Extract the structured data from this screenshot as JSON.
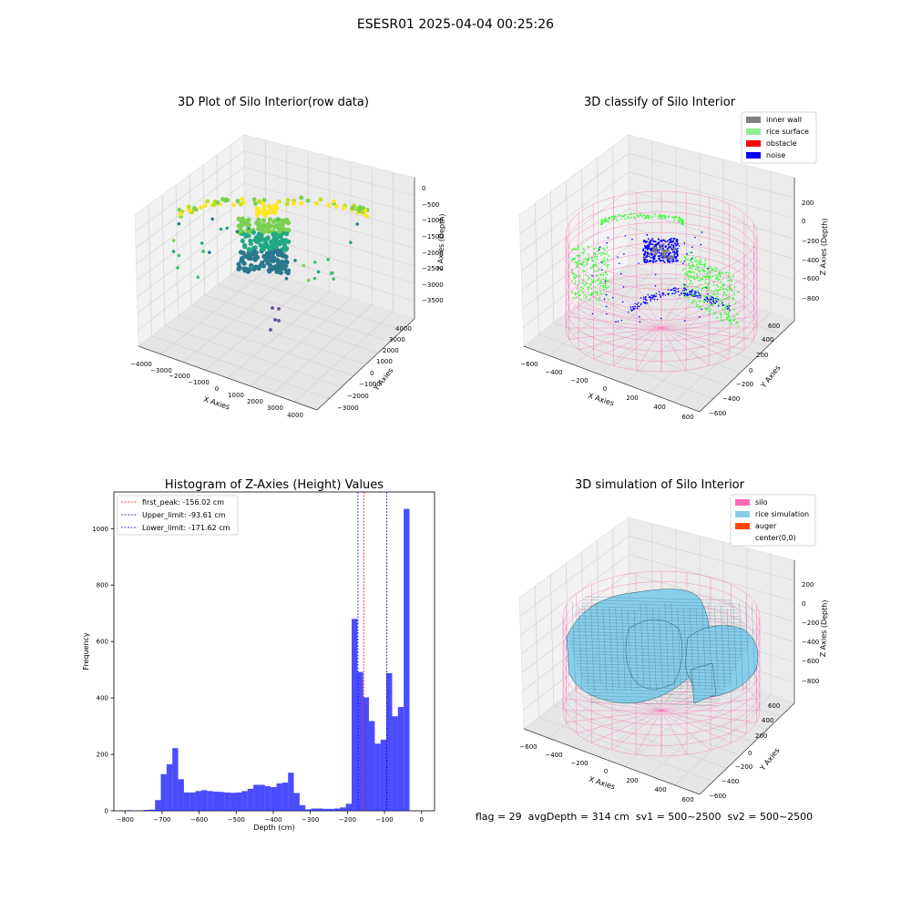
{
  "suptitle": "ESESR01 2025-04-04 00:25:26",
  "footer": "flag = 29  avgDepth = 314 cm  sv1 = 500~2500  sv2 = 500~2500",
  "panels": {
    "raw": {
      "title": "3D Plot of Silo Interior(row data)",
      "xlabel": "X Axies",
      "ylabel": "Y Axies",
      "zlabel": "Z Axies (Depth)",
      "xticks": [
        "−4000",
        "−3000",
        "−2000",
        "−1000",
        "0",
        "1000",
        "2000",
        "3000",
        "4000"
      ],
      "yticks": [
        "−3000",
        "−2000",
        "−1000",
        "0",
        "1000",
        "2000",
        "3000",
        "4000"
      ],
      "zticks": [
        "0",
        "−500",
        "−1000",
        "−1500",
        "−2000",
        "−2500",
        "−3000",
        "−3500"
      ]
    },
    "classify": {
      "title": "3D classify of Silo Interior",
      "xlabel": "X Axies",
      "ylabel": "Y Axies",
      "zlabel": "Z Axies (Depth)",
      "xticks": [
        "−600",
        "−400",
        "−200",
        "0",
        "200",
        "400",
        "600"
      ],
      "yticks": [
        "−600",
        "−400",
        "−200",
        "0",
        "200",
        "400",
        "600"
      ],
      "zticks": [
        "200",
        "0",
        "−200",
        "−400",
        "−600",
        "−800"
      ],
      "legend": [
        {
          "label": "inner wall",
          "color": "#808080"
        },
        {
          "label": "rice surface",
          "color": "#90ee90"
        },
        {
          "label": "obstacle",
          "color": "#ff0000"
        },
        {
          "label": "noise",
          "color": "#0000ff"
        }
      ]
    },
    "simulation": {
      "title": "3D simulation of Silo Interior",
      "xlabel": "X Axies",
      "ylabel": "Y Axies",
      "zlabel": "Z Axies (Depth)",
      "xticks": [
        "−600",
        "−400",
        "−200",
        "0",
        "200",
        "400",
        "600"
      ],
      "yticks": [
        "−600",
        "−400",
        "−200",
        "0",
        "200",
        "400",
        "600"
      ],
      "zticks": [
        "200",
        "0",
        "−200",
        "−400",
        "−600",
        "−800"
      ],
      "legend": [
        {
          "label": "silo",
          "color": "#ff69b4"
        },
        {
          "label": "rice simulation",
          "color": "#87ceeb"
        },
        {
          "label": "auger",
          "color": "#ff4500"
        },
        {
          "label": "center(0,0)",
          "color": ""
        }
      ]
    }
  },
  "chart_data": {
    "type": "bar",
    "title": "Histogram of Z-Axies (Height) Values",
    "xlabel": "Depth (cm)",
    "ylabel": "Frequency",
    "xlim": [
      -830,
      35
    ],
    "ylim": [
      0,
      1130
    ],
    "xticks": [
      -800,
      -700,
      -600,
      -500,
      -400,
      -300,
      -200,
      -100,
      0
    ],
    "xtick_labels": [
      "−800",
      "−700",
      "−600",
      "−500",
      "−400",
      "−300",
      "−200",
      "−100",
      "0"
    ],
    "yticks": [
      0,
      200,
      400,
      600,
      800,
      1000
    ],
    "bin_width": 15.6,
    "bin_start": -797,
    "values": [
      2,
      0,
      0,
      3,
      4,
      38,
      130,
      165,
      222,
      112,
      65,
      65,
      70,
      73,
      70,
      68,
      67,
      65,
      64,
      65,
      70,
      78,
      92,
      92,
      87,
      84,
      97,
      100,
      135,
      63,
      20,
      5,
      8,
      8,
      7,
      7,
      8,
      12,
      25,
      680,
      492,
      402,
      318,
      238,
      252,
      488,
      335,
      368,
      1070
    ],
    "color": "#0000ff",
    "vlines": [
      {
        "x": -156.02,
        "color": "#ff0000",
        "label": "first_peak: -156.02 cm"
      },
      {
        "x": -93.61,
        "color": "#00008b",
        "label": "Upper_limit: -93.61 cm"
      },
      {
        "x": -171.62,
        "color": "#0000ff",
        "label": "Lower_limit: -171.62 cm"
      }
    ],
    "legend_position": "upper-left"
  }
}
